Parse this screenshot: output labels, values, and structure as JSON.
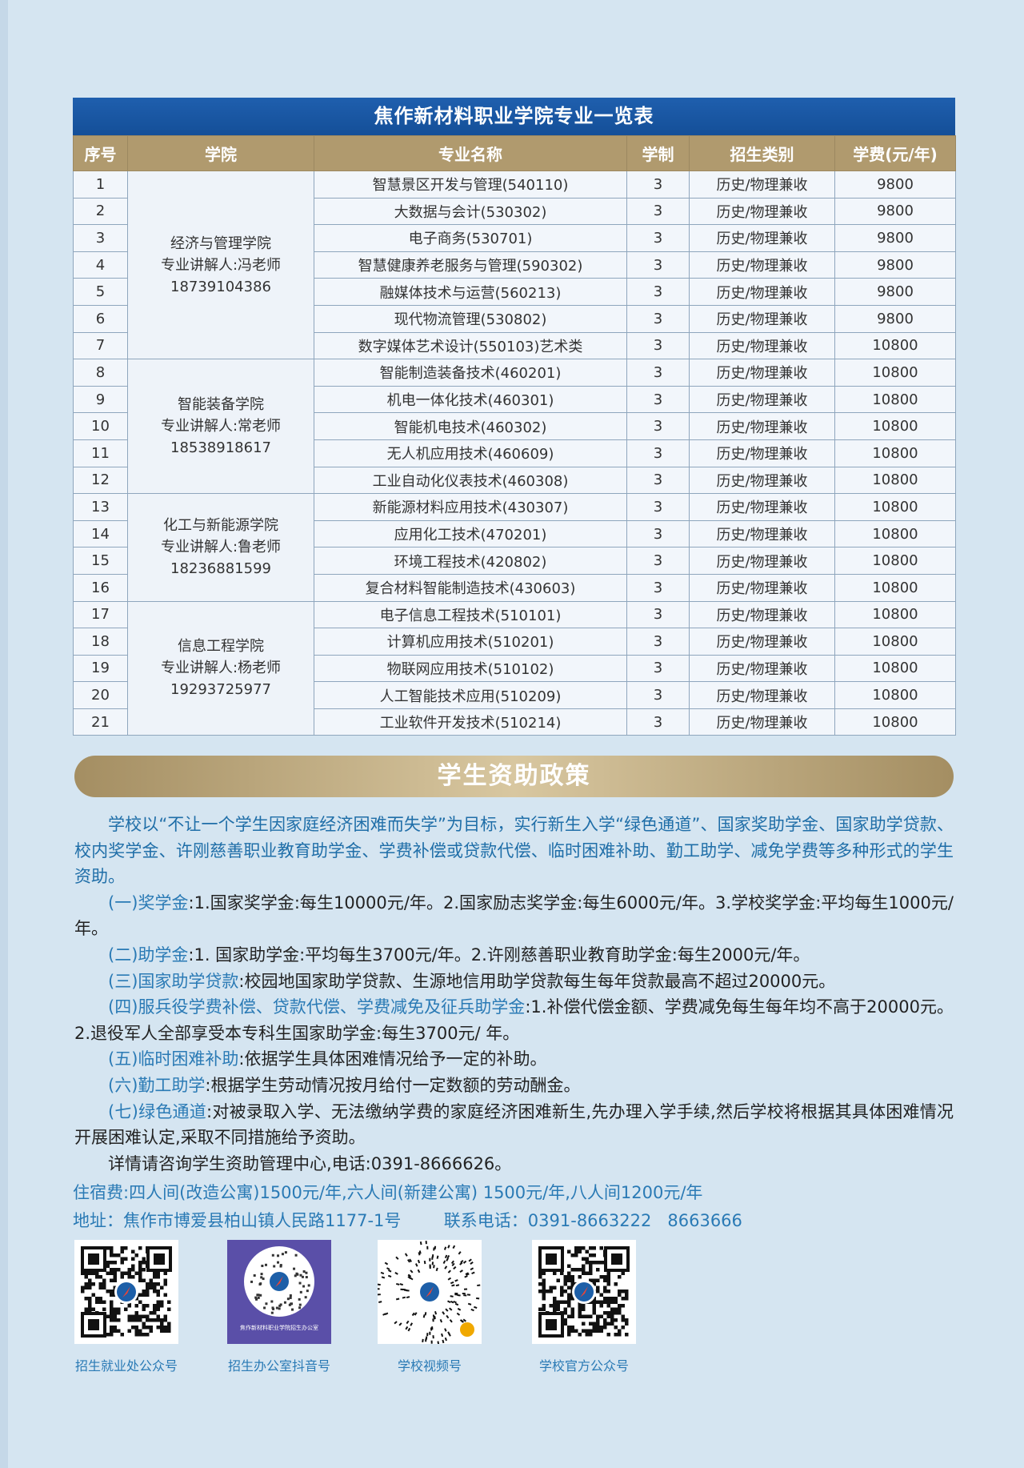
{
  "table": {
    "title": "焦作新材料职业学院专业一览表",
    "headers": [
      "序号",
      "学院",
      "专业名称",
      "学制",
      "招生类别",
      "学费(元/年)"
    ],
    "colleges": [
      {
        "name": "经济与管理学院",
        "contact": "专业讲解人:冯老师",
        "phone": "18739104386",
        "rows": [
          [
            "1",
            "智慧景区开发与管理(540110)",
            "3",
            "历史/物理兼收",
            "9800"
          ],
          [
            "2",
            "大数据与会计(530302)",
            "3",
            "历史/物理兼收",
            "9800"
          ],
          [
            "3",
            "电子商务(530701)",
            "3",
            "历史/物理兼收",
            "9800"
          ],
          [
            "4",
            "智慧健康养老服务与管理(590302)",
            "3",
            "历史/物理兼收",
            "9800"
          ],
          [
            "5",
            "融媒体技术与运营(560213)",
            "3",
            "历史/物理兼收",
            "9800"
          ],
          [
            "6",
            "现代物流管理(530802)",
            "3",
            "历史/物理兼收",
            "9800"
          ],
          [
            "7",
            "数字媒体艺术设计(550103)艺术类",
            "3",
            "历史/物理兼收",
            "10800"
          ]
        ]
      },
      {
        "name": "智能装备学院",
        "contact": "专业讲解人:常老师",
        "phone": "18538918617",
        "rows": [
          [
            "8",
            "智能制造装备技术(460201)",
            "3",
            "历史/物理兼收",
            "10800"
          ],
          [
            "9",
            "机电一体化技术(460301)",
            "3",
            "历史/物理兼收",
            "10800"
          ],
          [
            "10",
            "智能机电技术(460302)",
            "3",
            "历史/物理兼收",
            "10800"
          ],
          [
            "11",
            "无人机应用技术(460609)",
            "3",
            "历史/物理兼收",
            "10800"
          ],
          [
            "12",
            "工业自动化仪表技术(460308)",
            "3",
            "历史/物理兼收",
            "10800"
          ]
        ]
      },
      {
        "name": "化工与新能源学院",
        "contact": "专业讲解人:鲁老师",
        "phone": "18236881599",
        "rows": [
          [
            "13",
            "新能源材料应用技术(430307)",
            "3",
            "历史/物理兼收",
            "10800"
          ],
          [
            "14",
            "应用化工技术(470201)",
            "3",
            "历史/物理兼收",
            "10800"
          ],
          [
            "15",
            "环境工程技术(420802)",
            "3",
            "历史/物理兼收",
            "10800"
          ],
          [
            "16",
            "复合材料智能制造技术(430603)",
            "3",
            "历史/物理兼收",
            "10800"
          ]
        ]
      },
      {
        "name": "信息工程学院",
        "contact": "专业讲解人:杨老师",
        "phone": "19293725977",
        "rows": [
          [
            "17",
            "电子信息工程技术(510101)",
            "3",
            "历史/物理兼收",
            "10800"
          ],
          [
            "18",
            "计算机应用技术(510201)",
            "3",
            "历史/物理兼收",
            "10800"
          ],
          [
            "19",
            "物联网应用技术(510102)",
            "3",
            "历史/物理兼收",
            "10800"
          ],
          [
            "20",
            "人工智能技术应用(510209)",
            "3",
            "历史/物理兼收",
            "10800"
          ],
          [
            "21",
            "工业软件开发技术(510214)",
            "3",
            "历史/物理兼收",
            "10800"
          ]
        ]
      }
    ]
  },
  "policy": {
    "title": "学生资助政策",
    "intro": "学校以“不让一个学生因家庭经济困难而失学”为目标，实行新生入学“绿色通道”、国家奖助学金、国家助学贷款、校内奖学金、许刚慈善职业教育助学金、学费补偿或贷款代偿、临时困难补助、勤工助学、减免学费等多种形式的学生资助。",
    "items": [
      {
        "head": "(一)奖学金",
        "body": ":1.国家奖学金:每生10000元/年。2.国家励志奖学金:每生6000元/年。3.学校奖学金:平均每生1000元/年。"
      },
      {
        "head": "(二)助学金",
        "body": ":1. 国家助学金:平均每生3700元/年。2.许刚慈善职业教育助学金:每生2000元/年。"
      },
      {
        "head": "(三)国家助学贷款",
        "body": ":校园地国家助学贷款、生源地信用助学贷款每生每年贷款最高不超过20000元。"
      },
      {
        "head": "(四)服兵役学费补偿、贷款代偿、学费减免及征兵助学金",
        "body": ":1.补偿代偿金额、学费减免每生每年均不高于20000元。2.退役军人全部享受本专科生国家助学金:每生3700元/ 年。"
      },
      {
        "head": "(五)临时困难补助",
        "body": ":依据学生具体困难情况给予一定的补助。"
      },
      {
        "head": "(六)勤工助学",
        "body": ":根据学生劳动情况按月给付一定数额的劳动酬金。"
      },
      {
        "head": "(七)绿色通道",
        "body": ":对被录取入学、无法缴纳学费的家庭经济困难新生,先办理入学手续,然后学校将根据其具体困难情况开展困难认定,采取不同措施给予资助。"
      }
    ],
    "contact": "详情请咨询学生资助管理中心,电话:0391-8666626。"
  },
  "lodging": "住宿费:四人间(改造公寓)1500元/年,六人间(新建公寓) 1500元/年,八人间1200元/年",
  "address": "地址：焦作市博爱县柏山镇人民路1177-1号",
  "phone": "联系电话：0391-8663222   8663666",
  "qrcodes": [
    {
      "label": "招生就业处公众号",
      "icon": "qr-code-icon"
    },
    {
      "label": "招生办公室抖音号",
      "icon": "douyin-qr-icon",
      "caption": "焦作新材料职业学院招生办公室"
    },
    {
      "label": "学校视频号",
      "icon": "channels-qr-icon"
    },
    {
      "label": "学校官方公众号",
      "icon": "qr-code-icon"
    }
  ],
  "colors": {
    "background": "#d5e5f1",
    "title_band": "#1f5fae",
    "header": "#b09a6e",
    "accent_text": "#2a7ab5"
  }
}
